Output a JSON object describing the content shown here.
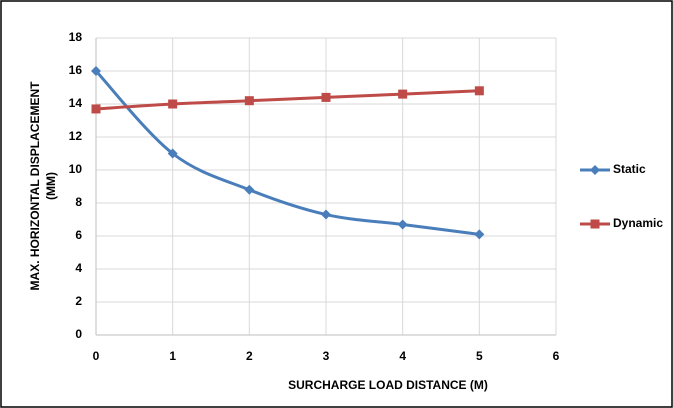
{
  "chart_data": {
    "type": "line",
    "ylabel": [
      "MAX. HORIZONTAL DISPLACEMENT",
      "(MM)"
    ],
    "xlabel": "SURCHARGE LOAD DISTANCE (M)",
    "x": [
      0,
      1,
      2,
      3,
      4,
      5
    ],
    "series": [
      {
        "name": "Static",
        "color": "#4a7ebb",
        "marker": "diamond",
        "values": [
          16,
          11,
          8.8,
          7.3,
          6.7,
          6.1
        ]
      },
      {
        "name": "Dynamic",
        "color": "#be4b48",
        "marker": "square",
        "values": [
          13.7,
          14,
          14.2,
          14.4,
          14.6,
          14.8
        ]
      }
    ],
    "xlim": [
      0,
      6
    ],
    "xticks": [
      0,
      1,
      2,
      3,
      4,
      5,
      6
    ],
    "ylim": [
      0,
      18
    ],
    "yticks": [
      0,
      2,
      4,
      6,
      8,
      10,
      12,
      14,
      16,
      18
    ],
    "grid": true,
    "legend": "right",
    "smooth": true
  }
}
